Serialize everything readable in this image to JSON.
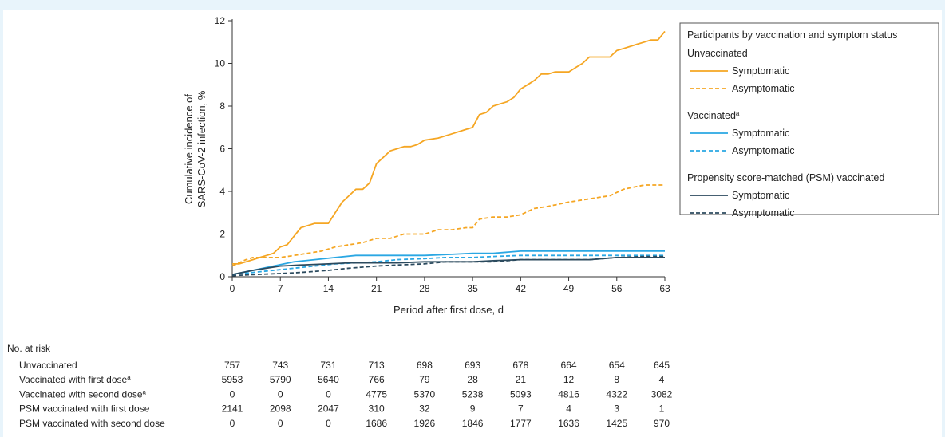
{
  "chart_data": {
    "type": "line",
    "title": "",
    "xlabel": "Period after first dose, d",
    "ylabel": [
      "Cumulative incidence of",
      "SARS-CoV-2 infection, %"
    ],
    "xlim": [
      0,
      63
    ],
    "ylim": [
      0,
      12
    ],
    "x_ticks": [
      0,
      7,
      14,
      21,
      28,
      35,
      42,
      49,
      56,
      63
    ],
    "y_ticks": [
      0,
      2,
      4,
      6,
      8,
      10,
      12
    ],
    "grid": false,
    "legend_position": "top-right",
    "legend": {
      "title": "Participants by vaccination and symptom status",
      "groups": [
        {
          "label": "Unvaccinated",
          "sup": "",
          "items": [
            "Symptomatic",
            "Asymptomatic"
          ]
        },
        {
          "label": "Vaccinated",
          "sup": "a",
          "items": [
            "Symptomatic",
            "Asymptomatic"
          ]
        },
        {
          "label": "Propensity score-matched (PSM) vaccinated",
          "sup": "",
          "items": [
            "Symptomatic",
            "Asymptomatic"
          ]
        }
      ]
    },
    "series": [
      {
        "group": "Unvaccinated",
        "name": "Symptomatic",
        "color": "#f5a623",
        "dash": "solid",
        "x": [
          0,
          1,
          2,
          3,
          4,
          5,
          6,
          7,
          8,
          9,
          10,
          11,
          12,
          13,
          14,
          15,
          16,
          17,
          18,
          19,
          20,
          21,
          22,
          23,
          24,
          25,
          26,
          27,
          28,
          30,
          32,
          34,
          35,
          36,
          37,
          38,
          39,
          40,
          41,
          42,
          43,
          44,
          45,
          46,
          47,
          48,
          49,
          50,
          51,
          52,
          53,
          54,
          55,
          56,
          57,
          58,
          59,
          60,
          61,
          62,
          63
        ],
        "y": [
          0.6,
          0.6,
          0.7,
          0.8,
          0.9,
          1.0,
          1.1,
          1.4,
          1.5,
          1.9,
          2.3,
          2.4,
          2.5,
          2.5,
          2.5,
          3.0,
          3.5,
          3.8,
          4.1,
          4.1,
          4.4,
          5.3,
          5.6,
          5.9,
          6.0,
          6.1,
          6.1,
          6.2,
          6.4,
          6.5,
          6.7,
          6.9,
          7.0,
          7.6,
          7.7,
          8.0,
          8.1,
          8.2,
          8.4,
          8.8,
          9.0,
          9.2,
          9.5,
          9.5,
          9.6,
          9.6,
          9.6,
          9.8,
          10.0,
          10.3,
          10.3,
          10.3,
          10.3,
          10.6,
          10.7,
          10.8,
          10.9,
          11.0,
          11.1,
          11.1,
          11.5
        ]
      },
      {
        "group": "Unvaccinated",
        "name": "Asymptomatic",
        "color": "#f5a623",
        "dash": "dashed",
        "x": [
          0,
          2,
          3,
          5,
          7,
          9,
          11,
          13,
          15,
          17,
          19,
          21,
          23,
          25,
          28,
          30,
          32,
          34,
          35,
          36,
          38,
          40,
          42,
          44,
          46,
          49,
          51,
          53,
          55,
          57,
          60,
          63
        ],
        "y": [
          0.5,
          0.8,
          0.9,
          0.9,
          0.9,
          1.0,
          1.1,
          1.2,
          1.4,
          1.5,
          1.6,
          1.8,
          1.8,
          2.0,
          2.0,
          2.2,
          2.2,
          2.3,
          2.3,
          2.7,
          2.8,
          2.8,
          2.9,
          3.2,
          3.3,
          3.5,
          3.6,
          3.7,
          3.8,
          4.1,
          4.3,
          4.3
        ]
      },
      {
        "group": "Vaccinated",
        "name": "Symptomatic",
        "color": "#2aa7e3",
        "dash": "solid",
        "x": [
          0,
          3,
          6,
          9,
          12,
          15,
          18,
          21,
          25,
          28,
          32,
          35,
          38,
          42,
          49,
          56,
          63
        ],
        "y": [
          0.1,
          0.3,
          0.5,
          0.7,
          0.8,
          0.9,
          1.0,
          1.0,
          1.0,
          1.0,
          1.05,
          1.1,
          1.1,
          1.2,
          1.2,
          1.2,
          1.2
        ]
      },
      {
        "group": "Vaccinated",
        "name": "Asymptomatic",
        "color": "#2aa7e3",
        "dash": "dashed",
        "x": [
          0,
          3,
          6,
          9,
          12,
          15,
          18,
          21,
          24,
          28,
          31,
          35,
          38,
          42,
          49,
          56,
          63
        ],
        "y": [
          0.1,
          0.2,
          0.3,
          0.4,
          0.5,
          0.6,
          0.65,
          0.7,
          0.8,
          0.85,
          0.9,
          0.9,
          0.95,
          1.0,
          1.0,
          1.0,
          1.0
        ]
      },
      {
        "group": "Propensity score-matched (PSM) vaccinated",
        "name": "Symptomatic",
        "color": "#2b4a5e",
        "dash": "solid",
        "x": [
          0,
          3,
          7,
          10,
          14,
          17,
          21,
          24,
          28,
          32,
          35,
          38,
          42,
          45,
          49,
          52,
          56,
          60,
          63
        ],
        "y": [
          0.1,
          0.3,
          0.5,
          0.55,
          0.6,
          0.65,
          0.65,
          0.65,
          0.7,
          0.7,
          0.7,
          0.75,
          0.8,
          0.8,
          0.8,
          0.8,
          0.9,
          0.9,
          0.9
        ]
      },
      {
        "group": "Propensity score-matched (PSM) vaccinated",
        "name": "Asymptomatic",
        "color": "#2b4a5e",
        "dash": "dashed",
        "x": [
          0,
          3,
          7,
          10,
          14,
          17,
          21,
          24,
          28,
          31,
          35,
          38,
          42,
          45,
          49,
          52,
          56,
          60,
          63
        ],
        "y": [
          0.05,
          0.1,
          0.15,
          0.2,
          0.3,
          0.4,
          0.5,
          0.55,
          0.6,
          0.7,
          0.7,
          0.7,
          0.8,
          0.8,
          0.8,
          0.8,
          0.9,
          0.95,
          0.95
        ]
      }
    ],
    "risk_table": {
      "header": "No. at risk",
      "columns": [
        0,
        7,
        14,
        21,
        28,
        35,
        42,
        49,
        56,
        63
      ],
      "rows": [
        {
          "label": "Unvaccinated",
          "sup": "",
          "values": [
            "757",
            "743",
            "731",
            "713",
            "698",
            "693",
            "678",
            "664",
            "654",
            "645"
          ]
        },
        {
          "label": "Vaccinated with first dose",
          "sup": "a",
          "values": [
            "5953",
            "5790",
            "5640",
            "766",
            "79",
            "28",
            "21",
            "12",
            "8",
            "4"
          ]
        },
        {
          "label": "Vaccinated with second dose",
          "sup": "a",
          "values": [
            "0",
            "0",
            "0",
            "4775",
            "5370",
            "5238",
            "5093",
            "4816",
            "4322",
            "3082"
          ]
        },
        {
          "label": "PSM vaccinated with first dose",
          "sup": "",
          "values": [
            "2141",
            "2098",
            "2047",
            "310",
            "32",
            "9",
            "7",
            "4",
            "3",
            "1"
          ]
        },
        {
          "label": "PSM vaccinated with second dose",
          "sup": "",
          "values": [
            "0",
            "0",
            "0",
            "1686",
            "1926",
            "1846",
            "1777",
            "1636",
            "1425",
            "970"
          ]
        }
      ]
    }
  }
}
